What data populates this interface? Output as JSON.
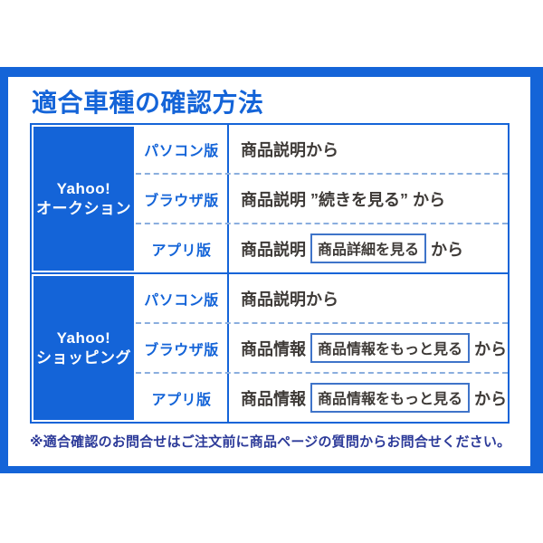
{
  "title": "適合車種の確認方法",
  "colors": {
    "frame_blue": "#1464d8",
    "content_text": "#3e3a37",
    "note_navy": "#2c3a99",
    "dashed_separator": "#8aaede",
    "button_border": "#3f74c9",
    "group_text": "#ffffff"
  },
  "table": {
    "sections": [
      {
        "service_line1": "Yahoo!",
        "service_line2": "オークション",
        "rows": [
          {
            "platform": "パソコン版",
            "text": "商品説明から"
          },
          {
            "platform": "ブラウザ版",
            "text": "商品説明 ”続きを見る” から"
          },
          {
            "platform": "アプリ版",
            "pre": "商品説明",
            "button": "商品詳細を見る",
            "post": "から"
          }
        ]
      },
      {
        "service_line1": "Yahoo!",
        "service_line2": "ショッピング",
        "rows": [
          {
            "platform": "パソコン版",
            "text": "商品説明から"
          },
          {
            "platform": "ブラウザ版",
            "pre": "商品情報",
            "button": "商品情報をもっと見る",
            "post": "から"
          },
          {
            "platform": "アプリ版",
            "pre": "商品情報",
            "button": "商品情報をもっと見る",
            "post": "から"
          }
        ]
      }
    ]
  },
  "note": "※適合確認のお問合せはご注文前に商品ページの質問からお問合せください。"
}
